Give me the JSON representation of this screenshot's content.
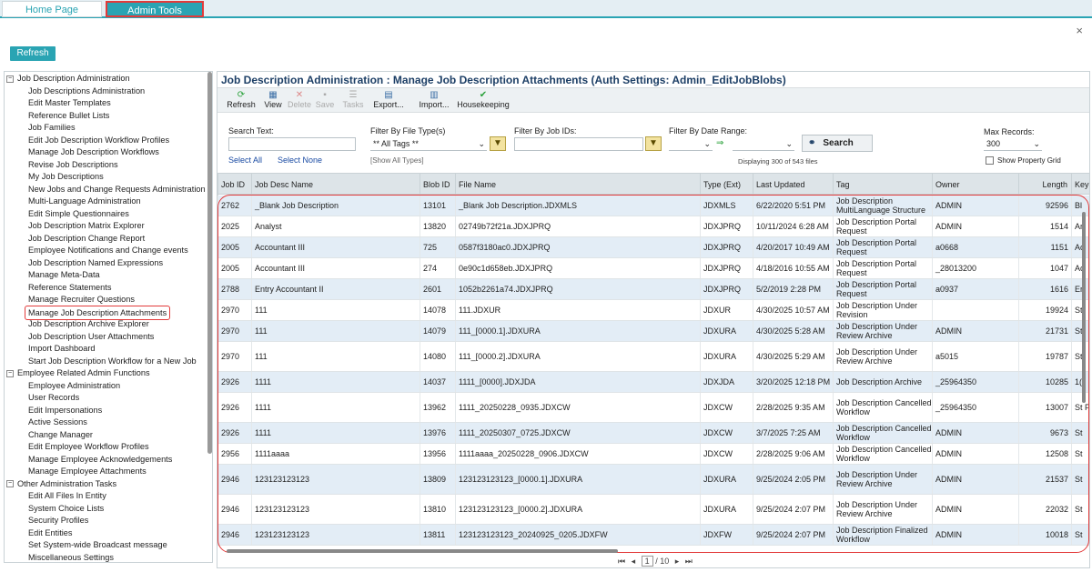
{
  "tabs": {
    "home": "Home Page",
    "admin": "Admin Tools"
  },
  "refresh_label": "Refresh",
  "close_glyph": "×",
  "left_tree": [
    {
      "type": "group",
      "label": "Job Description Administration"
    },
    {
      "type": "child",
      "label": "Job Descriptions Administration"
    },
    {
      "type": "child",
      "label": "Edit Master Templates"
    },
    {
      "type": "child",
      "label": "Reference Bullet Lists"
    },
    {
      "type": "child",
      "label": "Job Families"
    },
    {
      "type": "child",
      "label": "Edit Job Description Workflow Profiles"
    },
    {
      "type": "child",
      "label": "Manage Job Description Workflows"
    },
    {
      "type": "child",
      "label": "Revise Job Descriptions"
    },
    {
      "type": "child",
      "label": "My Job Descriptions"
    },
    {
      "type": "child",
      "label": "New Jobs and Change Requests Administration"
    },
    {
      "type": "child",
      "label": "Multi-Language Administration"
    },
    {
      "type": "child",
      "label": "Edit Simple Questionnaires"
    },
    {
      "type": "child",
      "label": "Job Description Matrix Explorer"
    },
    {
      "type": "child",
      "label": "Job Description Change Report"
    },
    {
      "type": "child",
      "label": "Employee Notifications and Change events"
    },
    {
      "type": "child",
      "label": "Job Description Named Expressions"
    },
    {
      "type": "child",
      "label": "Manage Meta-Data"
    },
    {
      "type": "child",
      "label": "Reference Statements"
    },
    {
      "type": "child",
      "label": "Manage Recruiter Questions"
    },
    {
      "type": "child",
      "label": "Manage Job Description Attachments",
      "selected": true
    },
    {
      "type": "child",
      "label": "Job Description Archive Explorer"
    },
    {
      "type": "child",
      "label": "Job Description User Attachments"
    },
    {
      "type": "child",
      "label": "Import Dashboard"
    },
    {
      "type": "child",
      "label": "Start Job Description Workflow for a New Job"
    },
    {
      "type": "group",
      "label": "Employee Related Admin Functions"
    },
    {
      "type": "child",
      "label": "Employee Administration"
    },
    {
      "type": "child",
      "label": "User Records"
    },
    {
      "type": "child",
      "label": "Edit Impersonations"
    },
    {
      "type": "child",
      "label": "Active Sessions"
    },
    {
      "type": "child",
      "label": "Change Manager"
    },
    {
      "type": "child",
      "label": "Edit Employee Workflow Profiles"
    },
    {
      "type": "child",
      "label": "Manage Employee Acknowledgements"
    },
    {
      "type": "child",
      "label": "Manage Employee Attachments"
    },
    {
      "type": "group",
      "label": "Other Administration Tasks"
    },
    {
      "type": "child",
      "label": "Edit All Files In Entity"
    },
    {
      "type": "child",
      "label": "System Choice Lists"
    },
    {
      "type": "child",
      "label": "Security Profiles"
    },
    {
      "type": "child",
      "label": "Edit Entities"
    },
    {
      "type": "child",
      "label": "Set System-wide Broadcast message"
    },
    {
      "type": "child",
      "label": "Miscellaneous Settings"
    }
  ],
  "main_title": "Job Description Administration : Manage Job Description Attachments (Auth Settings: Admin_EditJobBlobs)",
  "toolbar": [
    {
      "label": "Refresh",
      "icon": "refresh-icon",
      "glyph": "⟳",
      "enabled": true
    },
    {
      "label": "View",
      "icon": "view-icon",
      "glyph": "▦",
      "enabled": true
    },
    {
      "label": "Delete",
      "icon": "delete-icon",
      "glyph": "✕",
      "enabled": false
    },
    {
      "label": "Save",
      "icon": "save-icon",
      "glyph": "▪",
      "enabled": false
    },
    {
      "label": "Tasks",
      "icon": "tasks-icon",
      "glyph": "☰",
      "enabled": false
    },
    {
      "label": "Export...",
      "icon": "export-icon",
      "glyph": "▤",
      "enabled": true
    },
    {
      "label": "Import...",
      "icon": "import-icon",
      "glyph": "▥",
      "enabled": true
    },
    {
      "label": "Housekeeping",
      "icon": "check-icon",
      "glyph": "✔",
      "enabled": true
    }
  ],
  "filters": {
    "search_text_label": "Search Text:",
    "select_all": "Select All",
    "select_none": "Select None",
    "file_type_label": "Filter By File Type(s)",
    "file_type_value": "** All Tags **",
    "show_all_types": "[Show All Types]",
    "job_ids_label": "Filter By Job IDs:",
    "date_range_label": "Filter By Date Range:",
    "displaying": "Displaying 300 of 543 files",
    "search_button": "Search",
    "max_records_label": "Max Records:",
    "max_records_value": "300",
    "show_property_grid": "Show Property Grid"
  },
  "columns": [
    "Job ID",
    "Job Desc Name",
    "Blob ID",
    "File Name",
    "Type (Ext)",
    "Last Updated",
    "Tag",
    "Owner",
    "Length",
    "Key"
  ],
  "rows": [
    [
      "2762",
      "_Blank Job Description",
      "13101",
      "_Blank Job Description.JDXMLS",
      "JDXMLS",
      "6/22/2020 5:51 PM",
      "Job Description MultiLanguage Structure",
      "ADMIN",
      "92596",
      "Bl"
    ],
    [
      "2025",
      "Analyst",
      "13820",
      "02749b72f21a.JDXJPRQ",
      "JDXJPRQ",
      "10/11/2024 6:28 AM",
      "Job Description Portal Request",
      "ADMIN",
      "1514",
      "Ar"
    ],
    [
      "2005",
      "Accountant III",
      "725",
      "0587f3180ac0.JDXJPRQ",
      "JDXJPRQ",
      "4/20/2017 10:49 AM",
      "Job Description Portal Request",
      "a0668",
      "1151",
      "Ac"
    ],
    [
      "2005",
      "Accountant III",
      "274",
      "0e90c1d658eb.JDXJPRQ",
      "JDXJPRQ",
      "4/18/2016 10:55 AM",
      "Job Description Portal Request",
      "_28013200",
      "1047",
      "Ac"
    ],
    [
      "2788",
      "Entry Accountant II",
      "2601",
      "1052b2261a74.JDXJPRQ",
      "JDXJPRQ",
      "5/2/2019 2:28 PM",
      "Job Description Portal Request",
      "a0937",
      "1616",
      "Er"
    ],
    [
      "2970",
      "111",
      "14078",
      "111.JDXUR",
      "JDXUR",
      "4/30/2025 10:57 AM",
      "Job Description Under Revision",
      "",
      "19924",
      "St"
    ],
    [
      "2970",
      "111",
      "14079",
      "111_[0000.1].JDXURA",
      "JDXURA",
      "4/30/2025 5:28 AM",
      "Job Description Under Review Archive",
      "ADMIN",
      "21731",
      "St"
    ],
    [
      "2970",
      "111",
      "14080",
      "111_[0000.2].JDXURA",
      "JDXURA",
      "4/30/2025 5:29 AM",
      "Job Description Under Review Archive",
      "a5015",
      "19787",
      "St"
    ],
    [
      "2926",
      "1111",
      "14037",
      "1111_[0000].JDXJDA",
      "JDXJDA",
      "3/20/2025 12:18 PM",
      "Job Description Archive",
      "_25964350",
      "10285",
      "1("
    ],
    [
      "2926",
      "1111",
      "13962",
      "1111_20250228_0935.JDXCW",
      "JDXCW",
      "2/28/2025 9:35 AM",
      "Job Description Cancelled Workflow",
      "_25964350",
      "13007",
      "St Pa"
    ],
    [
      "2926",
      "1111",
      "13976",
      "1111_20250307_0725.JDXCW",
      "JDXCW",
      "3/7/2025 7:25 AM",
      "Job Description Cancelled Workflow",
      "ADMIN",
      "9673",
      "St"
    ],
    [
      "2956",
      "1111aaaa",
      "13956",
      "1111aaaa_20250228_0906.JDXCW",
      "JDXCW",
      "2/28/2025 9:06 AM",
      "Job Description Cancelled Workflow",
      "ADMIN",
      "12508",
      "St"
    ],
    [
      "2946",
      "123123123123",
      "13809",
      "123123123123_[0000.1].JDXURA",
      "JDXURA",
      "9/25/2024 2:05 PM",
      "Job Description Under Review Archive",
      "ADMIN",
      "21537",
      "St"
    ],
    [
      "2946",
      "123123123123",
      "13810",
      "123123123123_[0000.2].JDXURA",
      "JDXURA",
      "9/25/2024 2:07 PM",
      "Job Description Under Review Archive",
      "ADMIN",
      "22032",
      "St"
    ],
    [
      "2946",
      "123123123123",
      "13811",
      "123123123123_20240925_0205.JDXFW",
      "JDXFW",
      "9/25/2024 2:07 PM",
      "Job Description Finalized Workflow",
      "ADMIN",
      "10018",
      "St"
    ]
  ],
  "pager": {
    "page": "1",
    "total": "/ 10"
  }
}
